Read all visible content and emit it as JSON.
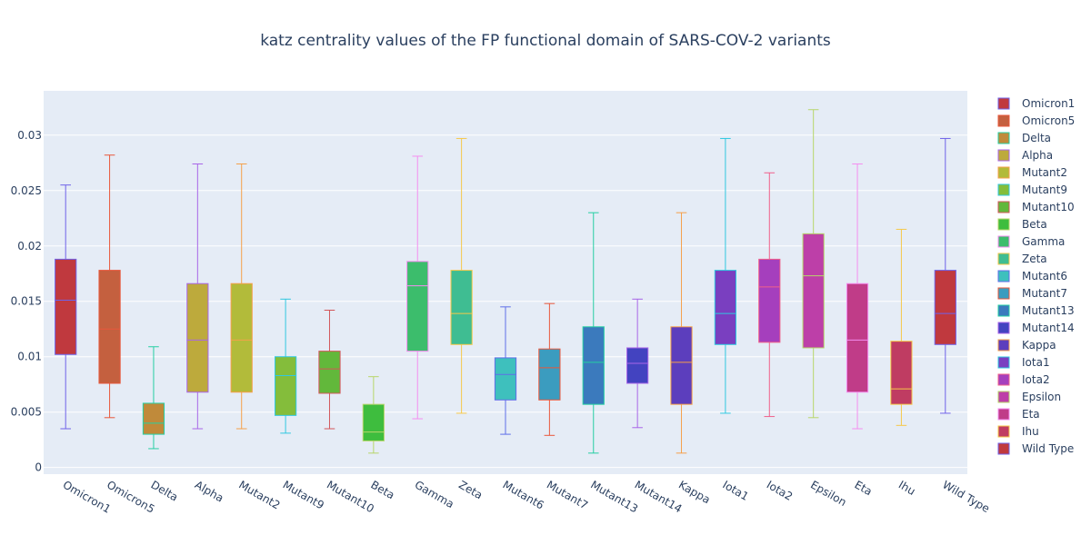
{
  "chart_data": {
    "type": "box",
    "title": "katz centrality values of the FP functional domain of SARS-COV-2 variants",
    "xlabel": "",
    "ylabel": "",
    "ylim": [
      -0.0006,
      0.034
    ],
    "yticks": [
      0,
      0.005,
      0.01,
      0.015,
      0.02,
      0.025,
      0.03
    ],
    "ytick_labels": [
      "0",
      "0.005",
      "0.01",
      "0.015",
      "0.02",
      "0.025",
      "0.03"
    ],
    "grid": true,
    "legend_position": "right",
    "categories": [
      "Omicron1",
      "Omicron5",
      "Delta",
      "Alpha",
      "Mutant2",
      "Mutant9",
      "Mutant10",
      "Beta",
      "Gamma",
      "Zeta",
      "Mutant6",
      "Mutant7",
      "Mutant13",
      "Mutant14",
      "Kappa",
      "Iota1",
      "Iota2",
      "Epsilon",
      "Eta",
      "Ihu",
      "Wild Type"
    ],
    "series": [
      {
        "name": "Omicron1",
        "min": 0.0035,
        "q1": 0.0102,
        "median": 0.0151,
        "q3": 0.0188,
        "max": 0.0255,
        "fill": "#c0393e",
        "line": "#6f62e8"
      },
      {
        "name": "Omicron5",
        "min": 0.0045,
        "q1": 0.0076,
        "median": 0.0125,
        "q3": 0.0178,
        "max": 0.0282,
        "fill": "#c4603f",
        "line": "#e8573b"
      },
      {
        "name": "Delta",
        "min": 0.0017,
        "q1": 0.003,
        "median": 0.004,
        "q3": 0.0058,
        "max": 0.0109,
        "fill": "#c08a3a",
        "line": "#26cfa3"
      },
      {
        "name": "Alpha",
        "min": 0.0035,
        "q1": 0.0068,
        "median": 0.0115,
        "q3": 0.0166,
        "max": 0.0274,
        "fill": "#bdaa3c",
        "line": "#a966e8"
      },
      {
        "name": "Mutant2",
        "min": 0.0035,
        "q1": 0.0068,
        "median": 0.0115,
        "q3": 0.0166,
        "max": 0.0274,
        "fill": "#b2bb3a",
        "line": "#f5a04a"
      },
      {
        "name": "Mutant9",
        "min": 0.0031,
        "q1": 0.0047,
        "median": 0.0083,
        "q3": 0.01,
        "max": 0.0152,
        "fill": "#84bd3b",
        "line": "#30c8e0"
      },
      {
        "name": "Mutant10",
        "min": 0.0035,
        "q1": 0.0067,
        "median": 0.0089,
        "q3": 0.0105,
        "max": 0.0142,
        "fill": "#62b83b",
        "line": "#d2565a"
      },
      {
        "name": "Beta",
        "min": 0.0013,
        "q1": 0.0024,
        "median": 0.0032,
        "q3": 0.0057,
        "max": 0.0082,
        "fill": "#3ebd3e",
        "line": "#b8d66b"
      },
      {
        "name": "Gamma",
        "min": 0.0044,
        "q1": 0.0105,
        "median": 0.0164,
        "q3": 0.0186,
        "max": 0.0281,
        "fill": "#3cbd6c",
        "line": "#f48ef0"
      },
      {
        "name": "Zeta",
        "min": 0.0049,
        "q1": 0.0111,
        "median": 0.0139,
        "q3": 0.0178,
        "max": 0.0297,
        "fill": "#3fbd92",
        "line": "#f5c84a"
      },
      {
        "name": "Mutant6",
        "min": 0.003,
        "q1": 0.0061,
        "median": 0.0084,
        "q3": 0.0099,
        "max": 0.0145,
        "fill": "#3ec0bd",
        "line": "#5f6ee8"
      },
      {
        "name": "Mutant7",
        "min": 0.0029,
        "q1": 0.0061,
        "median": 0.009,
        "q3": 0.0107,
        "max": 0.0148,
        "fill": "#3b9cbf",
        "line": "#e8573b"
      },
      {
        "name": "Mutant13",
        "min": 0.0013,
        "q1": 0.0057,
        "median": 0.0095,
        "q3": 0.0127,
        "max": 0.023,
        "fill": "#3b7abd",
        "line": "#26cfa3"
      },
      {
        "name": "Mutant14",
        "min": 0.0036,
        "q1": 0.0076,
        "median": 0.0094,
        "q3": 0.0108,
        "max": 0.0152,
        "fill": "#4343c0",
        "line": "#a966e8"
      },
      {
        "name": "Kappa",
        "min": 0.0013,
        "q1": 0.0057,
        "median": 0.0095,
        "q3": 0.0127,
        "max": 0.023,
        "fill": "#5c3ebd",
        "line": "#f5a04a"
      },
      {
        "name": "Iota1",
        "min": 0.0049,
        "q1": 0.0111,
        "median": 0.0139,
        "q3": 0.0178,
        "max": 0.0297,
        "fill": "#7a3fc0",
        "line": "#30c8e0"
      },
      {
        "name": "Iota2",
        "min": 0.0046,
        "q1": 0.0113,
        "median": 0.0163,
        "q3": 0.0188,
        "max": 0.0266,
        "fill": "#a53fbd",
        "line": "#f0608a"
      },
      {
        "name": "Epsilon",
        "min": 0.0045,
        "q1": 0.0108,
        "median": 0.0173,
        "q3": 0.0211,
        "max": 0.0323,
        "fill": "#bd3fa8",
        "line": "#b8d66b"
      },
      {
        "name": "Eta",
        "min": 0.0035,
        "q1": 0.0068,
        "median": 0.0115,
        "q3": 0.0166,
        "max": 0.0274,
        "fill": "#c03c88",
        "line": "#f48ef0"
      },
      {
        "name": "Ihu",
        "min": 0.0038,
        "q1": 0.0057,
        "median": 0.0071,
        "q3": 0.0114,
        "max": 0.0215,
        "fill": "#bf3c62",
        "line": "#f5c84a"
      },
      {
        "name": "Wild Type",
        "min": 0.0049,
        "q1": 0.0111,
        "median": 0.0139,
        "q3": 0.0178,
        "max": 0.0297,
        "fill": "#c0393e",
        "line": "#6f62e8"
      }
    ]
  }
}
